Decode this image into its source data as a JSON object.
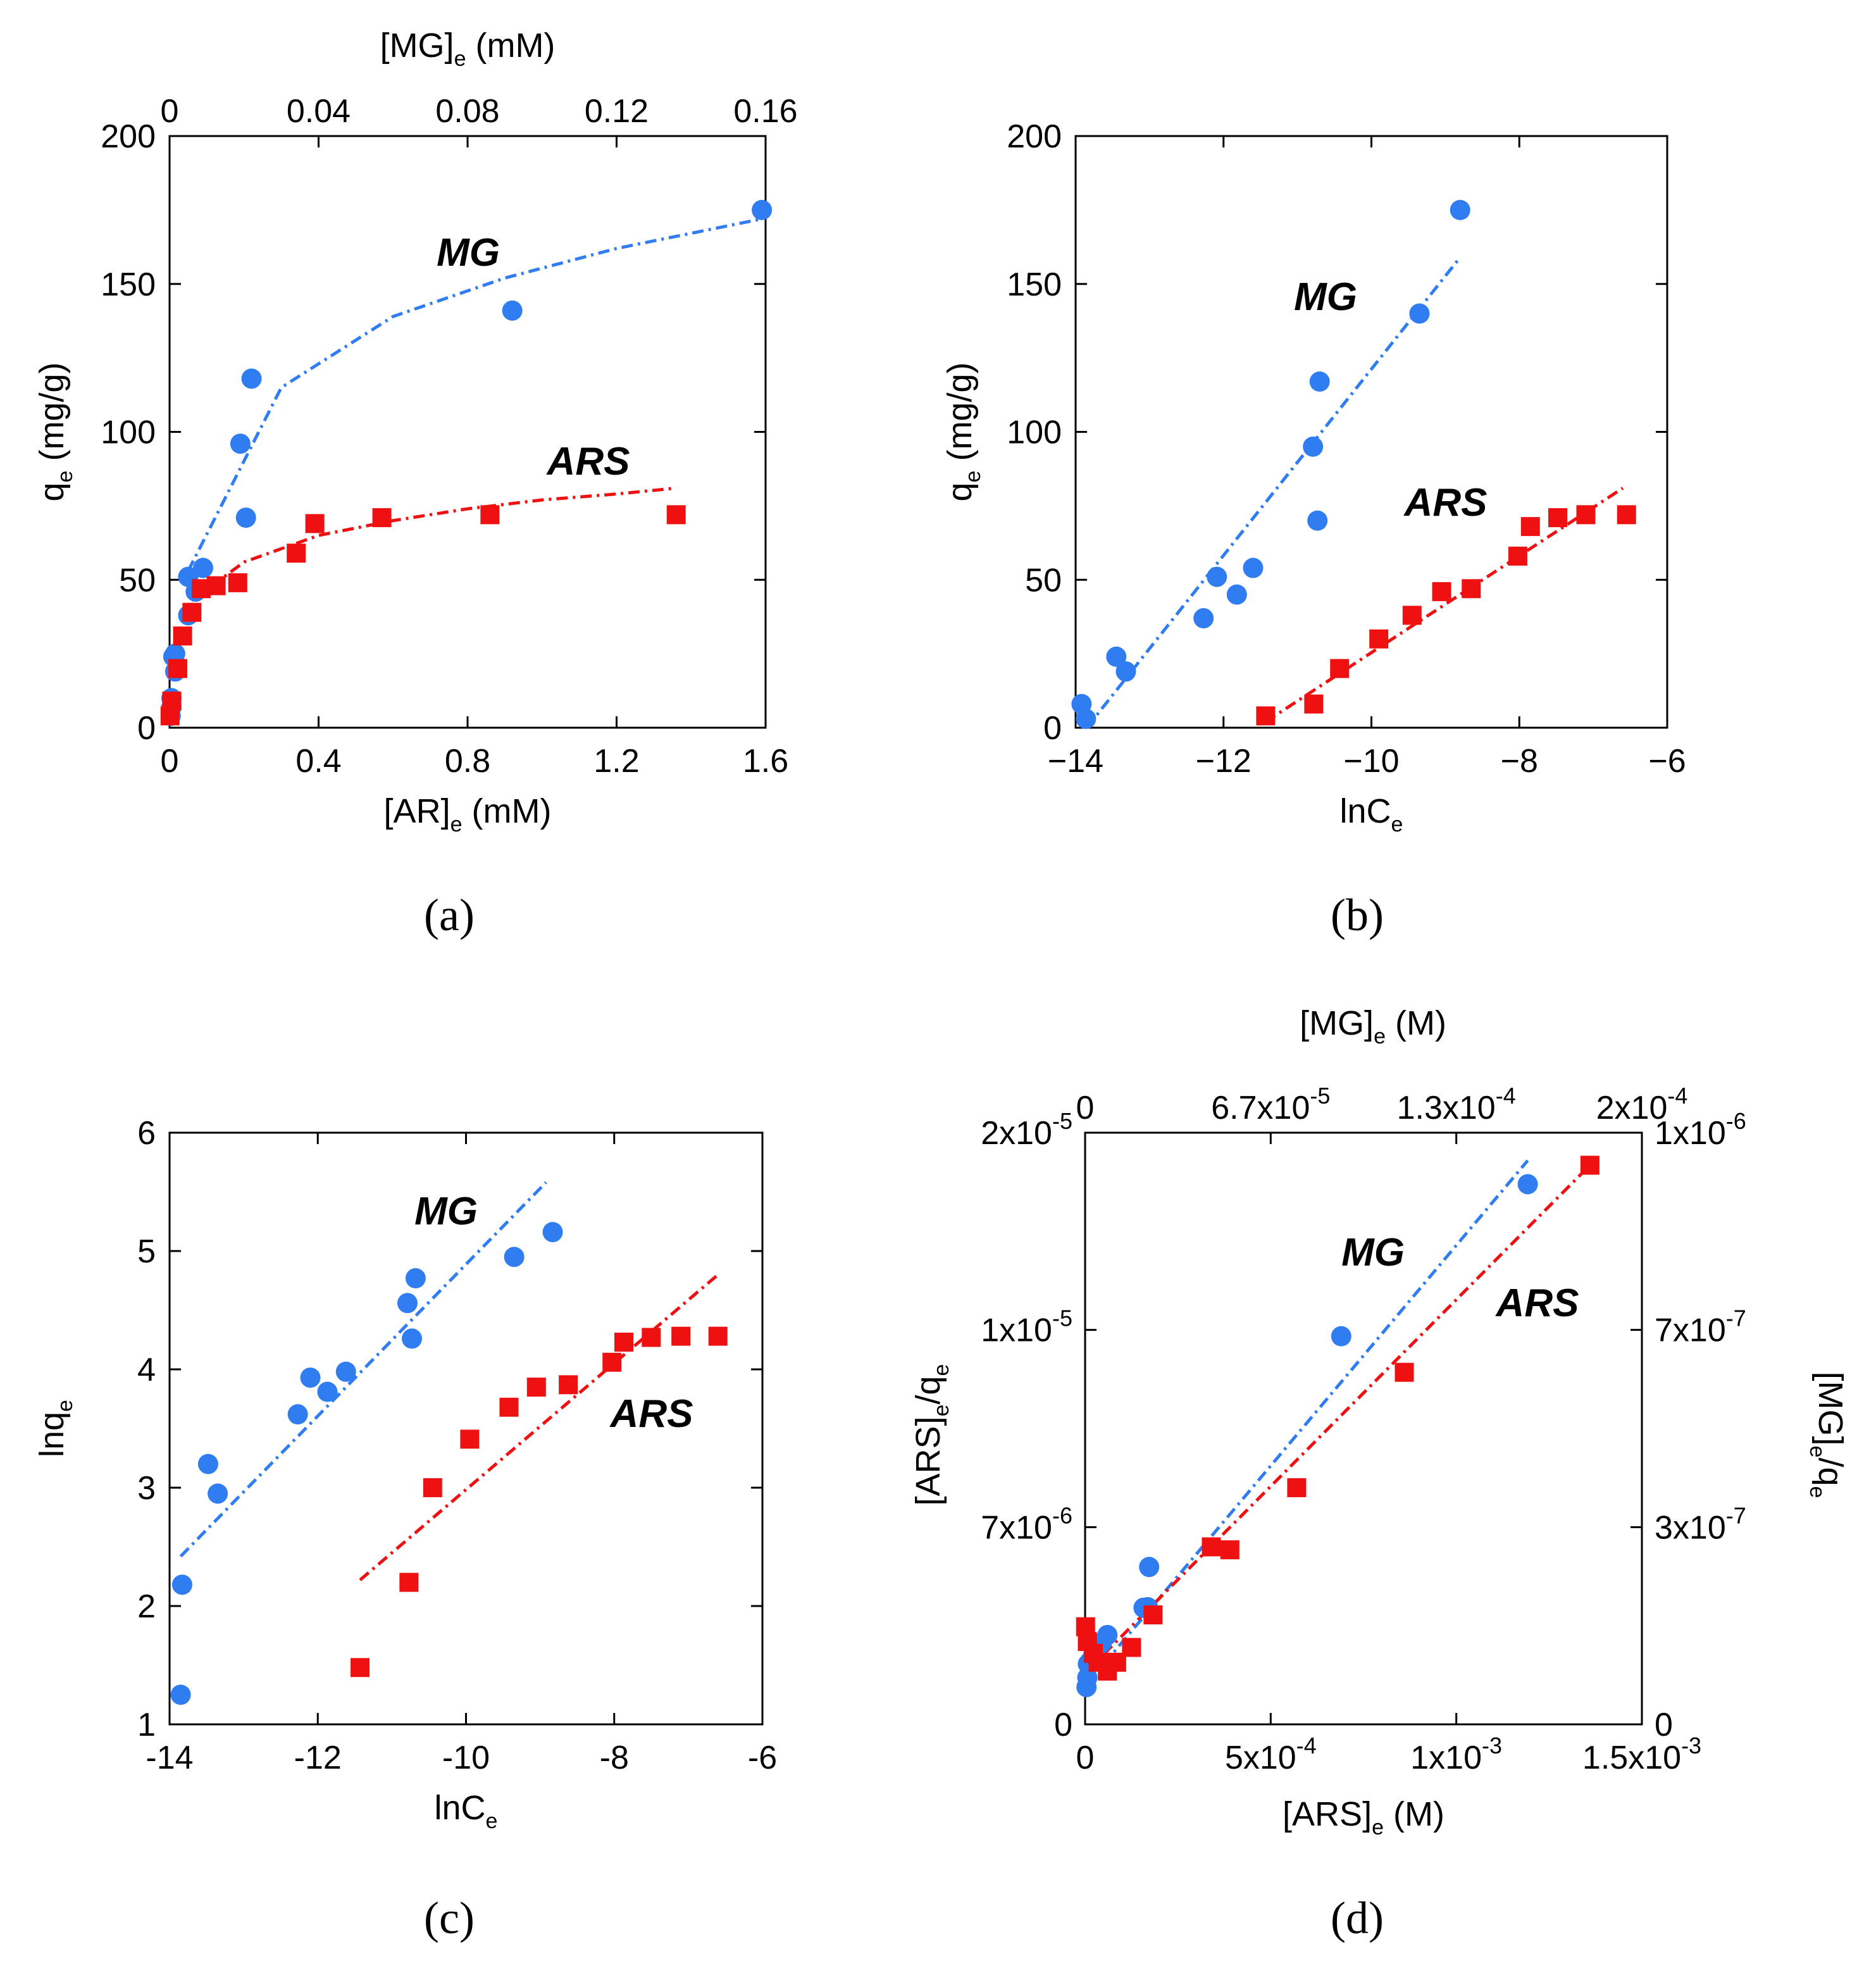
{
  "colors": {
    "MG": "#2f7df0",
    "ARS": "#ef1111"
  },
  "panels": [
    {
      "id": "a",
      "caption": "(a)",
      "xlabel": {
        "main": "[AR]",
        "sub": "e",
        "tail": " (mM)"
      },
      "ylabel": {
        "main": "q",
        "sub": "e",
        "tail": " (mg/g)"
      },
      "topXlabel": {
        "main": "[MG]",
        "sub": "e",
        "tail": " (mM)"
      },
      "xTicks": [
        "0",
        "0.4",
        "0.8",
        "1.2",
        "1.6"
      ],
      "yTicks": [
        "0",
        "50",
        "100",
        "150",
        "200"
      ],
      "topTicks": [
        "0",
        "0.04",
        "0.08",
        "0.12",
        "0.16"
      ],
      "seriesLabels": {
        "MG": "MG",
        "ARS": "ARS"
      }
    },
    {
      "id": "b",
      "caption": "(b)",
      "xlabel": {
        "main": "lnC",
        "sub": "e",
        "tail": ""
      },
      "ylabel": {
        "main": "q",
        "sub": "e",
        "tail": " (mg/g)"
      },
      "xTicks": [
        "−14",
        "−12",
        "−10",
        "−8",
        "−6"
      ],
      "yTicks": [
        "0",
        "50",
        "100",
        "150",
        "200"
      ],
      "seriesLabels": {
        "MG": "MG",
        "ARS": "ARS"
      }
    },
    {
      "id": "c",
      "caption": "(c)",
      "xlabel": {
        "main": "lnC",
        "sub": "e",
        "tail": ""
      },
      "ylabel": {
        "main": "lnq",
        "sub": "e",
        "tail": ""
      },
      "xTicks": [
        "-14",
        "-12",
        "-10",
        "-8",
        "-6"
      ],
      "yTicks": [
        "1",
        "2",
        "3",
        "4",
        "5",
        "6"
      ],
      "seriesLabels": {
        "MG": "MG",
        "ARS": "ARS"
      }
    },
    {
      "id": "d",
      "caption": "(d)",
      "xlabel": {
        "main": "[ARS]",
        "sub": "e",
        "tail": " (M)"
      },
      "ylabel": {
        "main": "[ARS]",
        "sub": "e",
        "tail": "/q",
        "sub2": "e"
      },
      "rightYlabel": {
        "main": "[MG]",
        "sub": "e",
        "tail": "/q",
        "sub2": "e"
      },
      "topXlabel": {
        "main": "[MG]",
        "sub": "e",
        "tail": " (M)"
      },
      "xTicks": [
        {
          "mant": "0",
          "exp": ""
        },
        {
          "mant": "5x10",
          "exp": "-4"
        },
        {
          "mant": "1x10",
          "exp": "-3"
        },
        {
          "mant": "1.5x10",
          "exp": "-3"
        }
      ],
      "yTicks": [
        {
          "mant": "0",
          "exp": ""
        },
        {
          "mant": "7x10",
          "exp": "-6"
        },
        {
          "mant": "1x10",
          "exp": "-5"
        },
        {
          "mant": "2x10",
          "exp": "-5"
        }
      ],
      "topTicks": [
        {
          "mant": "0",
          "exp": ""
        },
        {
          "mant": "6.7x10",
          "exp": "-5"
        },
        {
          "mant": "1.3x10",
          "exp": "-4"
        },
        {
          "mant": "2x10",
          "exp": "-4"
        }
      ],
      "rightTicks": [
        {
          "mant": "0",
          "exp": ""
        },
        {
          "mant": "3x10",
          "exp": "-7"
        },
        {
          "mant": "7x10",
          "exp": "-7"
        },
        {
          "mant": "1x10",
          "exp": "-6"
        }
      ],
      "seriesLabels": {
        "MG": "MG",
        "ARS": "ARS"
      }
    }
  ],
  "chart_data": [
    {
      "panel": "a",
      "type": "scatter",
      "title": "",
      "xlabel": "[AR]e (mM)",
      "ylabel": "qe (mg/g)",
      "top_xlabel": "[MG]e (mM)",
      "xlim": [
        0,
        1.6
      ],
      "ylim": [
        0,
        200
      ],
      "top_xlim": [
        0,
        0.16
      ],
      "series": [
        {
          "name": "MG",
          "marker": "circle",
          "axis": "top",
          "x": [
            0.0003,
            0.0005,
            0.0005,
            0.001,
            0.0015,
            0.0015,
            0.005,
            0.005,
            0.007,
            0.009,
            0.019,
            0.0205,
            0.022,
            0.092,
            0.159
          ],
          "y": [
            4,
            7,
            10,
            24,
            19,
            25,
            38,
            51,
            46,
            54,
            96,
            71,
            118,
            141,
            175
          ],
          "fit": {
            "model": "Freundlich",
            "x": [
              0.005,
              0.03,
              0.06,
              0.09,
              0.12,
              0.159
            ],
            "y": [
              53,
              115,
              139,
              152,
              162,
              172
            ]
          }
        },
        {
          "name": "ARS",
          "marker": "square",
          "axis": "bottom",
          "x": [
            0.0013,
            0.006,
            0.022,
            0.035,
            0.06,
            0.085,
            0.125,
            0.183,
            0.34,
            0.39,
            0.57,
            0.86,
            1.36
          ],
          "y": [
            4,
            9,
            20,
            31,
            39,
            47,
            48,
            49,
            59,
            69,
            71,
            72,
            72
          ],
          "fit": {
            "model": "Freundlich",
            "x": [
              0.06,
              0.2,
              0.4,
              0.6,
              0.8,
              1.0,
              1.2,
              1.36
            ],
            "y": [
              43,
              56,
              65,
              70,
              74,
              77,
              79,
              81
            ]
          }
        }
      ]
    },
    {
      "panel": "b",
      "type": "scatter",
      "title": "",
      "xlabel": "lnCe",
      "ylabel": "qe (mg/g)",
      "xlim": [
        -14,
        -6
      ],
      "ylim": [
        0,
        200
      ],
      "series": [
        {
          "name": "MG",
          "marker": "circle",
          "x": [
            -13.92,
            -13.86,
            -13.45,
            -13.32,
            -12.27,
            -12.09,
            -11.82,
            -11.6,
            -10.79,
            -10.73,
            -10.7,
            -9.35,
            -8.8
          ],
          "y": [
            8,
            3,
            24,
            19,
            37,
            51,
            45,
            54,
            95,
            70,
            117,
            140,
            175
          ],
          "fit": {
            "model": "Temkin",
            "x": [
              -13.85,
              -8.8
            ],
            "y": [
              0,
              159
            ]
          }
        },
        {
          "name": "ARS",
          "marker": "square",
          "x": [
            -11.43,
            -10.78,
            -10.43,
            -9.9,
            -9.45,
            -9.05,
            -8.65,
            -8.02,
            -7.85,
            -7.48,
            -7.1,
            -6.55
          ],
          "y": [
            4,
            8,
            20,
            30,
            38,
            46,
            47,
            58,
            68,
            71,
            72,
            72
          ],
          "fit": {
            "model": "Temkin",
            "x": [
              -11.43,
              -6.6
            ],
            "y": [
              2,
              81
            ]
          }
        }
      ]
    },
    {
      "panel": "c",
      "type": "scatter",
      "title": "",
      "xlabel": "lnCe",
      "ylabel": "lnqe",
      "xlim": [
        -14,
        -6
      ],
      "ylim": [
        1,
        6
      ],
      "series": [
        {
          "name": "MG",
          "marker": "circle",
          "x": [
            -13.85,
            -13.83,
            -13.48,
            -13.35,
            -12.27,
            -12.1,
            -11.87,
            -11.62,
            -10.79,
            -10.73,
            -10.68,
            -9.35,
            -8.83
          ],
          "y": [
            1.25,
            2.18,
            3.2,
            2.95,
            3.62,
            3.93,
            3.81,
            3.98,
            4.56,
            4.26,
            4.77,
            4.95,
            5.16
          ],
          "fit": {
            "model": "Freundlich-linear",
            "x": [
              -13.85,
              -8.92
            ],
            "y": [
              2.42,
              5.58
            ]
          }
        },
        {
          "name": "ARS",
          "marker": "square",
          "x": [
            -11.43,
            -10.77,
            -10.45,
            -9.95,
            -9.42,
            -9.05,
            -8.62,
            -8.03,
            -7.87,
            -7.5,
            -7.1,
            -6.6
          ],
          "y": [
            1.48,
            2.2,
            3.0,
            3.41,
            3.68,
            3.85,
            3.87,
            4.06,
            4.23,
            4.27,
            4.28,
            4.28
          ],
          "fit": {
            "model": "Freundlich-linear",
            "x": [
              -11.43,
              -6.6
            ],
            "y": [
              2.22,
              4.8
            ]
          }
        }
      ]
    },
    {
      "panel": "d",
      "type": "scatter",
      "title": "",
      "xlabel": "[ARS]e (M)",
      "ylabel": "[ARS]e/qe",
      "top_xlabel": "[MG]e (M)",
      "right_ylabel": "[MG]e/qe",
      "xlim": [
        0,
        0.0015
      ],
      "ylim": [
        0,
        2e-05
      ],
      "top_xlim": [
        0,
        0.0002
      ],
      "right_ylim": [
        0,
        1e-06
      ],
      "series": [
        {
          "name": "MG",
          "marker": "circle",
          "axis": "top-right",
          "x": [
            5e-07,
            8e-07,
            1e-06,
            1.7e-06,
            3e-06,
            4e-06,
            6e-06,
            8e-06,
            2.1e-05,
            2.25e-05,
            2.3e-05,
            9.2e-05,
            0.000159
          ],
          "y": [
            6.3e-08,
            7.9e-08,
            1.02e-07,
            1.06e-07,
            1.19e-07,
            1.21e-07,
            1.38e-07,
            1.51e-07,
            1.97e-07,
            1.98e-07,
            2.66e-07,
            6.56e-07,
            9.13e-07
          ],
          "fit": {
            "model": "Langmuir-linear",
            "x": [
              1e-06,
              0.000159
            ],
            "y": [
              7e-08,
              9.53e-07
            ]
          }
        },
        {
          "name": "ARS",
          "marker": "square",
          "axis": "bottom-left",
          "x": [
            1.3e-06,
            6e-06,
            2.2e-05,
            3.5e-05,
            6e-05,
            8.5e-05,
            0.000125,
            0.000183,
            0.00034,
            0.00039,
            0.00057,
            0.00086,
            0.00136
          ],
          "y": [
            3.3e-06,
            2.8e-06,
            2.4e-06,
            2.1e-06,
            1.8e-06,
            2.1e-06,
            2.6e-06,
            3.7e-06,
            6e-06,
            5.9e-06,
            8e-06,
            1.19e-05,
            1.89e-05
          ],
          "fit": {
            "model": "Langmuir-linear",
            "x": [
              5e-06,
              0.00136
            ],
            "y": [
              1.8e-06,
              1.89e-05
            ]
          }
        }
      ]
    }
  ]
}
